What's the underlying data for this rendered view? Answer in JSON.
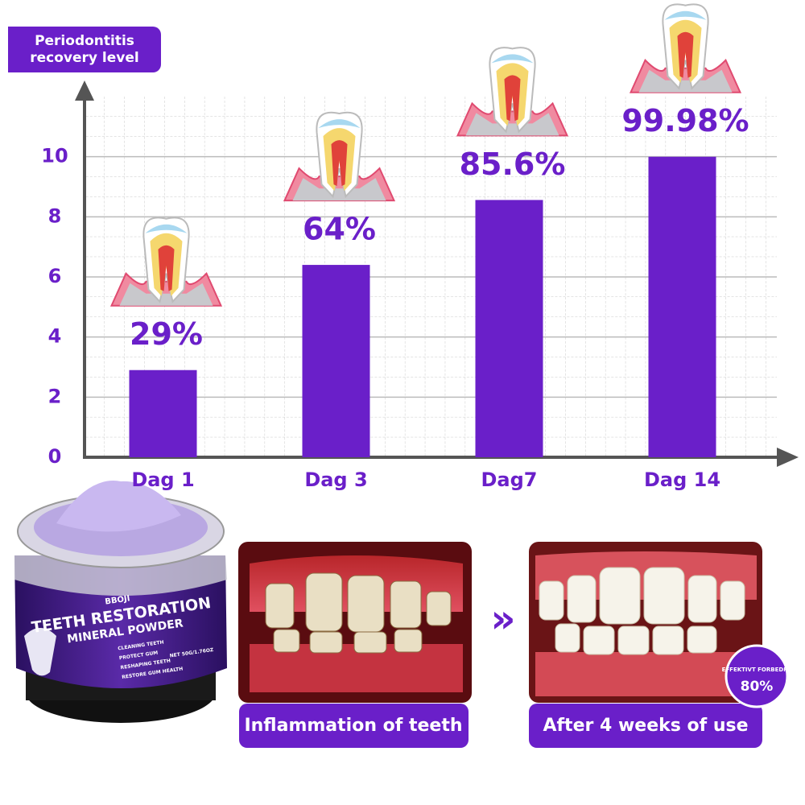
{
  "chart_data": {
    "type": "bar",
    "y_label": "Periodontitis recovery level",
    "categories": [
      "Dag 1",
      "Dag 3",
      "Dag7",
      "Dag 14"
    ],
    "values": [
      2.9,
      6.4,
      8.56,
      9.998
    ],
    "value_labels": [
      "29%",
      "64%",
      "85.6%",
      "99.98%"
    ],
    "color": "#6a1fc9",
    "ylim": [
      0,
      12
    ],
    "yticks": [
      0,
      2,
      4,
      6,
      8,
      10
    ],
    "grid": true
  },
  "panels": {
    "jar": {
      "brand": "BBOJI",
      "title": "TEETH RESTORATION",
      "subtitle": "MINERAL POWDER",
      "features": [
        "CLEANING TEETH",
        "PROTECT GUM",
        "RESHAPING TEETH",
        "RESTORE GUM HEALTH"
      ],
      "net": "NET 50G/1.76OZ"
    },
    "before_caption": "Inflammation of teeth",
    "after_caption": "After 4 weeks of use",
    "badge": {
      "text": "EFFEKTIVT FORBEDRE",
      "value": "80%"
    }
  }
}
